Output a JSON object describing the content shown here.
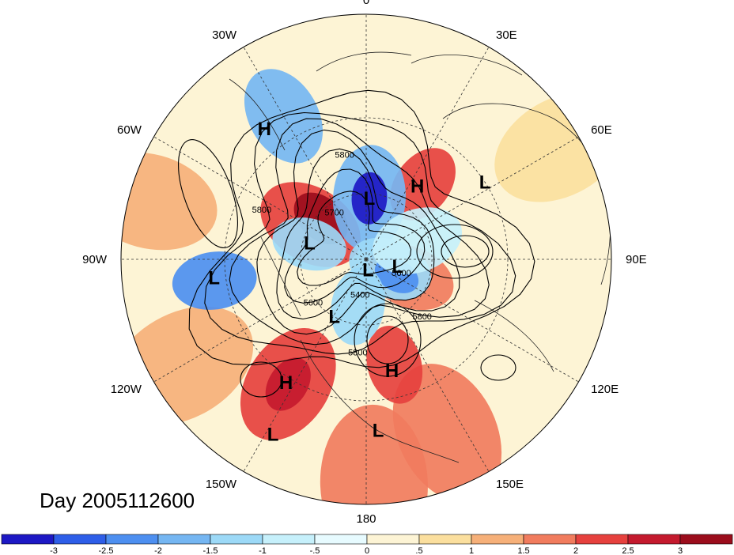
{
  "title": "Day 2005112600",
  "colors": {
    "land": "#fdf3d6",
    "background": "#ffffff",
    "contour": "#000000",
    "grid": "#333333"
  },
  "longitude_labels": [
    {
      "text": "90E",
      "lon": 90
    },
    {
      "text": "60E",
      "lon": 60
    },
    {
      "text": "30E",
      "lon": 30
    },
    {
      "text": "0",
      "lon": 0
    },
    {
      "text": "30W",
      "lon": -30
    },
    {
      "text": "60W",
      "lon": -60
    },
    {
      "text": "90W",
      "lon": -90
    },
    {
      "text": "120W",
      "lon": -120
    },
    {
      "text": "150W",
      "lon": -150
    },
    {
      "text": "180",
      "lon": 180
    },
    {
      "text": "150E",
      "lon": 150
    },
    {
      "text": "120E",
      "lon": 120
    }
  ],
  "pressure_centers": [
    {
      "type": "L",
      "lat": 30,
      "lon": 57
    },
    {
      "type": "H",
      "lat": 50,
      "lon": 35
    },
    {
      "type": "L",
      "lat": 62,
      "lon": 3
    },
    {
      "type": "H",
      "lat": 22,
      "lon": -38
    },
    {
      "type": "L",
      "lat": 63,
      "lon": -74
    },
    {
      "type": "L",
      "lat": 75,
      "lon": 103
    },
    {
      "type": "L",
      "lat": 85,
      "lon": 170
    },
    {
      "type": "L",
      "lat": 60,
      "lon": -151
    },
    {
      "type": "L",
      "lat": 26,
      "lon": -97
    },
    {
      "type": "H",
      "lat": 28,
      "lon": -147
    },
    {
      "type": "L",
      "lat": 12,
      "lon": -152
    },
    {
      "type": "H",
      "lat": 40,
      "lon": 167
    },
    {
      "type": "L",
      "lat": 20,
      "lon": 176
    }
  ],
  "contour_labels": [
    {
      "text": "5800",
      "lat": 53,
      "lon": 137
    },
    {
      "text": "5600",
      "lat": 72,
      "lon": 115
    },
    {
      "text": "5800",
      "lat": 47,
      "lon": -175
    },
    {
      "text": "5600",
      "lat": 58,
      "lon": -131
    },
    {
      "text": "5400",
      "lat": 72,
      "lon": -171
    },
    {
      "text": "5700",
      "lat": 65,
      "lon": -36
    },
    {
      "text": "5800",
      "lat": 44,
      "lon": -12
    },
    {
      "text": "5800",
      "lat": 40,
      "lon": -66
    }
  ],
  "colorbar": {
    "ticks": [
      "-3",
      "-2.5",
      "-2",
      "-1.5",
      "-1",
      "-.5",
      "0",
      ".5",
      "1",
      "1.5",
      "2",
      "2.5",
      "3"
    ],
    "colors": [
      "#1d18c4",
      "#2e5ee8",
      "#4d8ff0",
      "#75b6f2",
      "#9cd9f7",
      "#c6f0fb",
      "#e7fbff",
      "#fdf4d5",
      "#fbdf9e",
      "#f6b079",
      "#f17c5e",
      "#e6413e",
      "#c41a2e",
      "#9b0d1c"
    ]
  },
  "anomaly_blobs": [
    {
      "lat": 14,
      "lon": 155,
      "r": 40,
      "level": 10
    },
    {
      "lat": 42,
      "lon": 165,
      "r": 28,
      "level": 11
    },
    {
      "lat": 5,
      "lon": 178,
      "r": 40,
      "level": 10
    },
    {
      "lat": 28,
      "lon": -148,
      "r": 38,
      "level": 11
    },
    {
      "lat": 28,
      "lon": -148,
      "r": 18,
      "level": 12
    },
    {
      "lat": 8,
      "lon": -120,
      "r": 40,
      "level": 9
    },
    {
      "lat": 5,
      "lon": -75,
      "r": 35,
      "level": 9
    },
    {
      "lat": 60,
      "lon": -58,
      "r": 45,
      "level": 11
    },
    {
      "lat": 62,
      "lon": -48,
      "r": 26,
      "level": 13
    },
    {
      "lat": 48,
      "lon": 37,
      "r": 30,
      "level": 11
    },
    {
      "lat": 68,
      "lon": 112,
      "r": 40,
      "level": 10
    },
    {
      "lat": 5,
      "lon": 60,
      "r": 36,
      "level": 8
    },
    {
      "lat": 62,
      "lon": 3,
      "r": 45,
      "level": 3
    },
    {
      "lat": 62,
      "lon": 3,
      "r": 22,
      "level": 0
    },
    {
      "lat": 78,
      "lon": 112,
      "r": 42,
      "level": 4
    },
    {
      "lat": 74,
      "lon": 118,
      "r": 22,
      "level": 2
    },
    {
      "lat": 68,
      "lon": -170,
      "r": 35,
      "level": 4
    },
    {
      "lat": 63,
      "lon": -75,
      "r": 32,
      "level": 4
    },
    {
      "lat": 26,
      "lon": -98,
      "r": 26,
      "level": 2
    },
    {
      "lat": 22,
      "lon": -30,
      "r": 30,
      "level": 3
    },
    {
      "lat": 65,
      "lon": 70,
      "r": 40,
      "level": 5
    }
  ]
}
